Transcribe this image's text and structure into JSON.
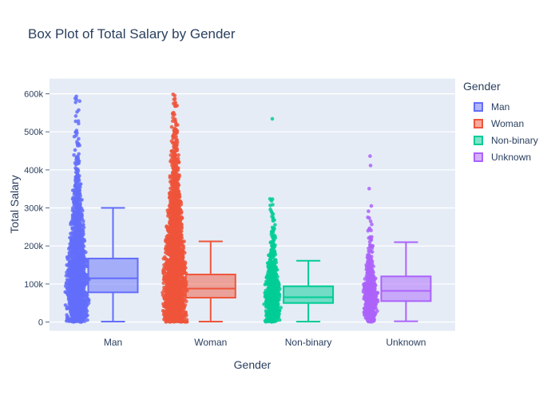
{
  "chart_data": {
    "type": "box",
    "title": "Box Plot of Total Salary by Gender",
    "xlabel": "Gender",
    "ylabel": "Total Salary",
    "categories": [
      "Man",
      "Woman",
      "Non-binary",
      "Unknown"
    ],
    "ytick_values": [
      0,
      100000,
      200000,
      300000,
      400000,
      500000,
      600000
    ],
    "ytick_labels": [
      "0",
      "100k",
      "200k",
      "300k",
      "400k",
      "500k",
      "600k"
    ],
    "ylim": [
      -23000,
      640000
    ],
    "grid": true,
    "plot_bg_color": "#E5ECF6",
    "grid_color": "#ffffff",
    "text_color": "#2a3f5f",
    "legend": {
      "title": "Gender",
      "position": "right",
      "entries": [
        "Man",
        "Woman",
        "Non-binary",
        "Unknown"
      ]
    },
    "series": [
      {
        "name": "Man",
        "color": "#636EFA",
        "box": {
          "lower_whisker": 1000,
          "q1": 78000,
          "median": 115000,
          "q3": 167000,
          "upper_whisker": 300000
        },
        "points": {
          "min": 0,
          "max": 600000,
          "bands": [
            [
              0,
              25000,
              130
            ],
            [
              25000,
              50000,
              140
            ],
            [
              50000,
              75000,
              150
            ],
            [
              75000,
              100000,
              150
            ],
            [
              100000,
              125000,
              140
            ],
            [
              125000,
              150000,
              130
            ],
            [
              150000,
              175000,
              115
            ],
            [
              175000,
              200000,
              100
            ],
            [
              200000,
              225000,
              85
            ],
            [
              225000,
              250000,
              75
            ],
            [
              250000,
              275000,
              65
            ],
            [
              275000,
              300000,
              55
            ],
            [
              300000,
              325000,
              40
            ],
            [
              325000,
              350000,
              30
            ],
            [
              350000,
              375000,
              18
            ],
            [
              375000,
              400000,
              14
            ],
            [
              400000,
              425000,
              10
            ],
            [
              425000,
              450000,
              8
            ],
            [
              450000,
              475000,
              7
            ],
            [
              475000,
              500000,
              6
            ],
            [
              500000,
              530000,
              4
            ],
            [
              530000,
              560000,
              3
            ],
            [
              560000,
              585000,
              3
            ],
            [
              585000,
              600000,
              2
            ]
          ]
        }
      },
      {
        "name": "Woman",
        "color": "#EF553B",
        "box": {
          "lower_whisker": 1000,
          "q1": 64000,
          "median": 88000,
          "q3": 125000,
          "upper_whisker": 212000
        },
        "points": {
          "min": 0,
          "max": 600000,
          "bands": [
            [
              0,
              25000,
              160
            ],
            [
              25000,
              50000,
              170
            ],
            [
              50000,
              75000,
              180
            ],
            [
              75000,
              100000,
              175
            ],
            [
              100000,
              125000,
              160
            ],
            [
              125000,
              150000,
              150
            ],
            [
              150000,
              175000,
              135
            ],
            [
              175000,
              200000,
              120
            ],
            [
              200000,
              225000,
              105
            ],
            [
              225000,
              250000,
              95
            ],
            [
              250000,
              275000,
              85
            ],
            [
              275000,
              300000,
              75
            ],
            [
              300000,
              325000,
              65
            ],
            [
              325000,
              350000,
              55
            ],
            [
              350000,
              375000,
              45
            ],
            [
              375000,
              400000,
              38
            ],
            [
              400000,
              425000,
              30
            ],
            [
              425000,
              450000,
              24
            ],
            [
              450000,
              475000,
              18
            ],
            [
              475000,
              500000,
              14
            ],
            [
              500000,
              525000,
              10
            ],
            [
              525000,
              550000,
              8
            ],
            [
              550000,
              575000,
              6
            ],
            [
              575000,
              600000,
              5
            ]
          ]
        }
      },
      {
        "name": "Non-binary",
        "color": "#00CC96",
        "box": {
          "lower_whisker": 1000,
          "q1": 50000,
          "median": 65000,
          "q3": 94000,
          "upper_whisker": 161000
        },
        "points": {
          "min": 0,
          "max": 533000,
          "bands": [
            [
              0,
              20000,
              70
            ],
            [
              20000,
              40000,
              85
            ],
            [
              40000,
              60000,
              90
            ],
            [
              60000,
              80000,
              85
            ],
            [
              80000,
              100000,
              75
            ],
            [
              100000,
              120000,
              60
            ],
            [
              120000,
              140000,
              45
            ],
            [
              140000,
              160000,
              35
            ],
            [
              160000,
              180000,
              25
            ],
            [
              180000,
              200000,
              18
            ],
            [
              200000,
              220000,
              12
            ],
            [
              220000,
              240000,
              9
            ],
            [
              240000,
              260000,
              6
            ],
            [
              260000,
              280000,
              5
            ],
            [
              280000,
              300000,
              4
            ],
            [
              300000,
              320000,
              3
            ],
            [
              320000,
              340000,
              2
            ],
            [
              528000,
              536000,
              1
            ]
          ]
        }
      },
      {
        "name": "Unknown",
        "color": "#AB63FA",
        "box": {
          "lower_whisker": 2000,
          "q1": 55000,
          "median": 82000,
          "q3": 120000,
          "upper_whisker": 210000
        },
        "points": {
          "min": 0,
          "max": 437000,
          "bands": [
            [
              0,
              20000,
              60
            ],
            [
              20000,
              40000,
              75
            ],
            [
              40000,
              60000,
              80
            ],
            [
              60000,
              80000,
              75
            ],
            [
              80000,
              100000,
              65
            ],
            [
              100000,
              120000,
              50
            ],
            [
              120000,
              140000,
              38
            ],
            [
              140000,
              160000,
              26
            ],
            [
              160000,
              180000,
              16
            ],
            [
              180000,
              200000,
              10
            ],
            [
              200000,
              220000,
              7
            ],
            [
              220000,
              240000,
              5
            ],
            [
              240000,
              260000,
              4
            ],
            [
              260000,
              280000,
              3
            ],
            [
              280000,
              308000,
              2
            ],
            [
              345000,
              352000,
              1
            ],
            [
              407000,
              413000,
              1
            ],
            [
              434000,
              440000,
              1
            ]
          ]
        }
      }
    ]
  }
}
